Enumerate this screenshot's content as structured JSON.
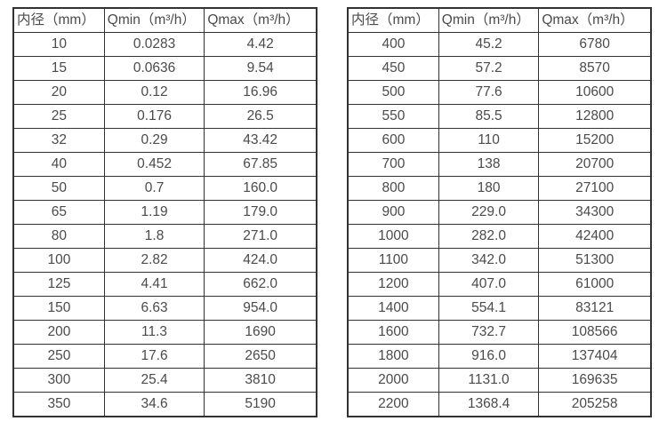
{
  "colors": {
    "background": "#ffffff",
    "border": "#333333",
    "text": "#4a4a4a"
  },
  "chart_data": [
    {
      "type": "table",
      "title": "",
      "columns": [
        "内径（mm）",
        "Qmin（m³/h）",
        "Qmax（m³/h）"
      ],
      "rows": [
        [
          "10",
          "0.0283",
          "4.42"
        ],
        [
          "15",
          "0.0636",
          "9.54"
        ],
        [
          "20",
          "0.12",
          "16.96"
        ],
        [
          "25",
          "0.176",
          "26.5"
        ],
        [
          "32",
          "0.29",
          "43.42"
        ],
        [
          "40",
          "0.452",
          "67.85"
        ],
        [
          "50",
          "0.7",
          "160.0"
        ],
        [
          "65",
          "1.19",
          "179.0"
        ],
        [
          "80",
          "1.8",
          "271.0"
        ],
        [
          "100",
          "2.82",
          "424.0"
        ],
        [
          "125",
          "4.41",
          "662.0"
        ],
        [
          "150",
          "6.63",
          "954.0"
        ],
        [
          "200",
          "11.3",
          "1690"
        ],
        [
          "250",
          "17.6",
          "2650"
        ],
        [
          "300",
          "25.4",
          "3810"
        ],
        [
          "350",
          "34.6",
          "5190"
        ]
      ]
    },
    {
      "type": "table",
      "title": "",
      "columns": [
        "内径（mm）",
        "Qmin（m³/h）",
        "Qmax（m³/h）"
      ],
      "rows": [
        [
          "400",
          "45.2",
          "6780"
        ],
        [
          "450",
          "57.2",
          "8570"
        ],
        [
          "500",
          "77.6",
          "10600"
        ],
        [
          "550",
          "85.5",
          "12800"
        ],
        [
          "600",
          "110",
          "15200"
        ],
        [
          "700",
          "138",
          "20700"
        ],
        [
          "800",
          "180",
          "27100"
        ],
        [
          "900",
          "229.0",
          "34300"
        ],
        [
          "1000",
          "282.0",
          "42400"
        ],
        [
          "1100",
          "342.0",
          "51300"
        ],
        [
          "1200",
          "407.0",
          "61000"
        ],
        [
          "1400",
          "554.1",
          "83121"
        ],
        [
          "1600",
          "732.7",
          "108566"
        ],
        [
          "1800",
          "916.0",
          "137404"
        ],
        [
          "2000",
          "1131.0",
          "169635"
        ],
        [
          "2200",
          "1368.4",
          "205258"
        ]
      ]
    }
  ]
}
